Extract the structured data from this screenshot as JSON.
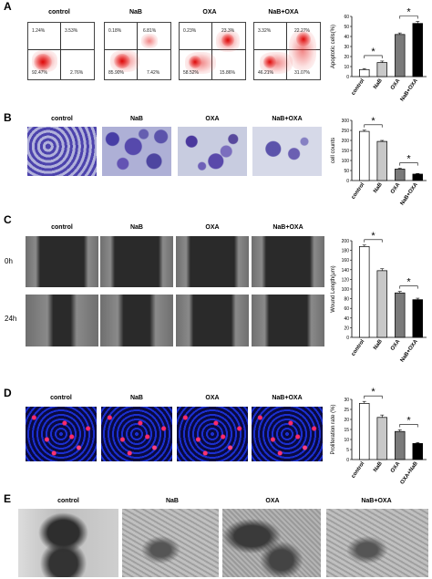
{
  "panels": {
    "A": {
      "label": "A",
      "groups": [
        "control",
        "NaB",
        "OXA",
        "NaB+OXA"
      ],
      "flow": [
        {
          "ul": "1.24%",
          "ur": "3.53%",
          "ll": "92.47%",
          "lr": "2.76%"
        },
        {
          "ul": "0.18%",
          "ur": "6.81%",
          "ll": "85.90%",
          "lr": "7.42%"
        },
        {
          "ul": "0.23%",
          "ur": "23.3%",
          "ll": "58.52%",
          "lr": "15.86%"
        },
        {
          "ul": "3.32%",
          "ur": "22.27%",
          "ll": "46.21%",
          "lr": "31.07%"
        }
      ]
    },
    "B": {
      "label": "B",
      "groups": [
        "control",
        "NaB",
        "OXA",
        "NaB+OXA"
      ]
    },
    "C": {
      "label": "C",
      "groups": [
        "control",
        "NaB",
        "OXA",
        "NaB+OXA"
      ],
      "rows": [
        "0h",
        "24h"
      ]
    },
    "D": {
      "label": "D",
      "groups": [
        "control",
        "NaB",
        "OXA",
        "NaB+OXA"
      ]
    },
    "E": {
      "label": "E",
      "groups": [
        "control",
        "NaB",
        "OXA",
        "NaB+OXA"
      ]
    }
  },
  "chart_data": [
    {
      "panel": "A",
      "type": "bar",
      "categories": [
        "control",
        "NaB",
        "OXA",
        "NaB+OXA"
      ],
      "values": [
        7,
        14,
        42,
        53
      ],
      "errors": [
        1,
        1.5,
        1.5,
        2
      ],
      "colors": [
        "#ffffff",
        "#c8c8c8",
        "#7a7a7a",
        "#000000"
      ],
      "ylabel": "Apoptotic cells(%)",
      "ylim": [
        0,
        60
      ],
      "yticks": [
        0,
        10,
        20,
        30,
        40,
        50,
        60
      ],
      "sig": [
        "*",
        "*"
      ]
    },
    {
      "panel": "B",
      "type": "bar",
      "categories": [
        "control",
        "NaB",
        "OXA",
        "NaB+OXA"
      ],
      "values": [
        245,
        195,
        57,
        32
      ],
      "errors": [
        6,
        5,
        4,
        3
      ],
      "colors": [
        "#ffffff",
        "#c8c8c8",
        "#7a7a7a",
        "#000000"
      ],
      "ylabel": "cell counts",
      "ylim": [
        0,
        300
      ],
      "yticks": [
        0,
        50,
        100,
        150,
        200,
        250,
        300
      ],
      "sig": [
        "*",
        "*"
      ]
    },
    {
      "panel": "C",
      "type": "bar",
      "categories": [
        "control",
        "NaB",
        "OXA",
        "NaB+OXA"
      ],
      "values": [
        188,
        138,
        92,
        78
      ],
      "errors": [
        3,
        4,
        3,
        3
      ],
      "colors": [
        "#ffffff",
        "#c8c8c8",
        "#7a7a7a",
        "#000000"
      ],
      "ylabel": "Wound Length(μm)",
      "ylim": [
        0,
        200
      ],
      "yticks": [
        0,
        20,
        40,
        60,
        80,
        100,
        120,
        140,
        160,
        180,
        200
      ],
      "sig": [
        "*",
        "*"
      ]
    },
    {
      "panel": "D",
      "type": "bar",
      "categories": [
        "control",
        "NaB",
        "OXA",
        "OXA+NaB"
      ],
      "values": [
        28,
        21,
        14,
        8
      ],
      "errors": [
        1,
        1.2,
        0.8,
        0.5
      ],
      "colors": [
        "#ffffff",
        "#c8c8c8",
        "#7a7a7a",
        "#000000"
      ],
      "ylabel": "Proliferation rate (%)",
      "ylim": [
        0,
        30
      ],
      "yticks": [
        0,
        5,
        10,
        15,
        20,
        25,
        30
      ],
      "sig": [
        "*",
        "*"
      ]
    }
  ]
}
